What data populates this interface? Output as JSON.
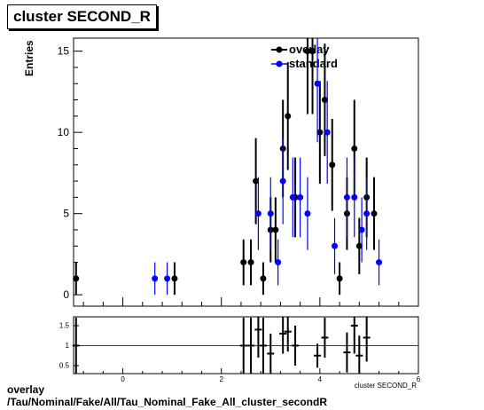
{
  "title": "cluster SECOND_R",
  "caption_line1": "overlay",
  "caption_line2": "/Tau/Nominal/Fake/All/Tau_Nominal_Fake_All_cluster_secondR",
  "chart_data": [
    {
      "type": "scatter",
      "title": "cluster SECOND_R",
      "ylabel": "Entries",
      "xlabel": "cluster SECOND_R",
      "xlim": [
        -1,
        6
      ],
      "ylim": [
        -0.7,
        15.8
      ],
      "x_ticks": [
        0,
        2,
        4,
        6
      ],
      "y_ticks": [
        0,
        5,
        10,
        15
      ],
      "grid": false,
      "legend_position": "top-right",
      "colors": {
        "overlay": "#000000",
        "standard": "#0000ff"
      },
      "series": [
        {
          "name": "overlay",
          "points": [
            {
              "x": -0.95,
              "y": 1,
              "err": 1
            },
            {
              "x": 1.05,
              "y": 1,
              "err": 1
            },
            {
              "x": 2.45,
              "y": 2,
              "err": 1.41
            },
            {
              "x": 2.6,
              "y": 2,
              "err": 1.41
            },
            {
              "x": 2.7,
              "y": 7,
              "err": 2.65
            },
            {
              "x": 2.85,
              "y": 1,
              "err": 1
            },
            {
              "x": 3.0,
              "y": 4,
              "err": 2
            },
            {
              "x": 3.1,
              "y": 4,
              "err": 2
            },
            {
              "x": 3.25,
              "y": 9,
              "err": 3
            },
            {
              "x": 3.35,
              "y": 11,
              "err": 3.32
            },
            {
              "x": 3.5,
              "y": 6,
              "err": 2.45
            },
            {
              "x": 3.75,
              "y": 15,
              "err": 3.87
            },
            {
              "x": 3.85,
              "y": 15,
              "err": 3.87
            },
            {
              "x": 4.0,
              "y": 10,
              "err": 3.16
            },
            {
              "x": 4.1,
              "y": 12,
              "err": 3.46
            },
            {
              "x": 4.25,
              "y": 8,
              "err": 2.83
            },
            {
              "x": 4.4,
              "y": 1,
              "err": 1
            },
            {
              "x": 4.55,
              "y": 5,
              "err": 2.24
            },
            {
              "x": 4.7,
              "y": 9,
              "err": 3
            },
            {
              "x": 4.8,
              "y": 3,
              "err": 1.73
            },
            {
              "x": 4.95,
              "y": 6,
              "err": 2.45
            },
            {
              "x": 5.1,
              "y": 5,
              "err": 2.24
            }
          ]
        },
        {
          "name": "standard",
          "points": [
            {
              "x": 0.65,
              "y": 1,
              "err": 1
            },
            {
              "x": 0.9,
              "y": 1,
              "err": 1
            },
            {
              "x": 2.75,
              "y": 5,
              "err": 2.24
            },
            {
              "x": 3.0,
              "y": 5,
              "err": 2.24
            },
            {
              "x": 3.15,
              "y": 2,
              "err": 1.41
            },
            {
              "x": 3.25,
              "y": 7,
              "err": 2.65
            },
            {
              "x": 3.45,
              "y": 6,
              "err": 2.45
            },
            {
              "x": 3.6,
              "y": 6,
              "err": 2.45
            },
            {
              "x": 3.75,
              "y": 5,
              "err": 2.24
            },
            {
              "x": 3.95,
              "y": 13,
              "err": 3.61
            },
            {
              "x": 4.15,
              "y": 10,
              "err": 3.16
            },
            {
              "x": 4.3,
              "y": 3,
              "err": 1.73
            },
            {
              "x": 4.55,
              "y": 6,
              "err": 2.45
            },
            {
              "x": 4.7,
              "y": 6,
              "err": 2.45
            },
            {
              "x": 4.85,
              "y": 4,
              "err": 2
            },
            {
              "x": 4.95,
              "y": 5,
              "err": 2.24
            },
            {
              "x": 5.2,
              "y": 2,
              "err": 1.41
            }
          ]
        }
      ]
    },
    {
      "type": "scatter",
      "xlim": [
        -1,
        6
      ],
      "ylim": [
        0.3,
        1.72
      ],
      "x_ticks": [
        0,
        2,
        4,
        6
      ],
      "y_ticks": [
        0.5,
        1,
        1.5
      ],
      "y_tick_labels": [
        "0.5",
        "1",
        "1.5"
      ],
      "reference_line": 1,
      "reference_color": "#cc0000",
      "series": [
        {
          "name": "ratio",
          "points": [
            {
              "x": -0.95,
              "y": 1.0,
              "err": 0.7
            },
            {
              "x": 2.45,
              "y": 1.0,
              "err": 0.7
            },
            {
              "x": 2.6,
              "y": 1.0,
              "err": 0.7
            },
            {
              "x": 2.75,
              "y": 1.4,
              "err": 0.7
            },
            {
              "x": 2.85,
              "y": 1.0,
              "err": 0.7
            },
            {
              "x": 3.0,
              "y": 0.8,
              "err": 0.5
            },
            {
              "x": 3.25,
              "y": 1.3,
              "err": 0.5
            },
            {
              "x": 3.35,
              "y": 1.35,
              "err": 0.5
            },
            {
              "x": 3.5,
              "y": 1.0,
              "err": 0.5
            },
            {
              "x": 3.95,
              "y": 0.75,
              "err": 0.3
            },
            {
              "x": 4.1,
              "y": 1.2,
              "err": 0.5
            },
            {
              "x": 4.55,
              "y": 0.83,
              "err": 0.5
            },
            {
              "x": 4.7,
              "y": 1.5,
              "err": 0.7
            },
            {
              "x": 4.8,
              "y": 0.75,
              "err": 0.5
            },
            {
              "x": 4.95,
              "y": 1.2,
              "err": 0.6
            }
          ]
        }
      ]
    }
  ]
}
